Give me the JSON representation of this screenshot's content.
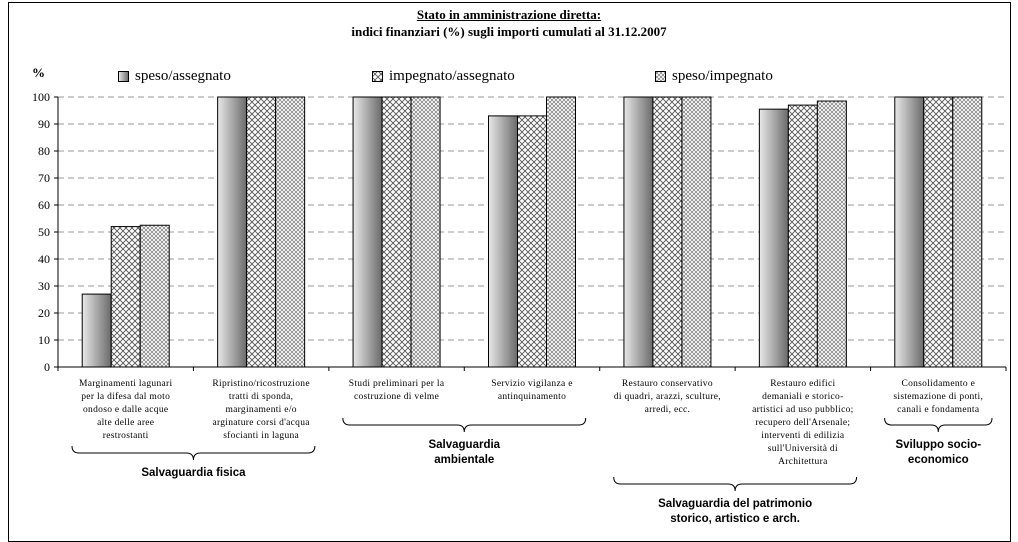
{
  "title": "Stato in amministrazione diretta:",
  "subtitle": "indici finanziari (%) sugli importi cumulati al 31.12.2007",
  "chart_data": {
    "type": "bar",
    "title": "Stato in amministrazione diretta:",
    "subtitle": "indici finanziari (%) sugli importi cumulati al 31.12.2007",
    "ylabel": "%",
    "xlabel": "",
    "ylim": [
      0,
      100
    ],
    "yticks": [
      "0",
      "10",
      "20",
      "30",
      "40",
      "50",
      "60",
      "70",
      "80",
      "90",
      "100"
    ],
    "grid": true,
    "legend_position": "top",
    "categories": [
      "Marginamenti lagunari per la difesa dal moto ondoso e dalle acque alte delle aree restrostanti",
      "Ripristino/ricostruzione tratti di sponda, marginamenti e/o arginature corsi d'acqua sfocianti in laguna",
      "Studi preliminari per la costruzione di velme",
      "Servizio vigilanza e antinquinamento",
      "Restauro conservativo di quadri, arazzi, sculture, arredi, ecc.",
      "Restauro edifici demaniali e storico-artistici ad uso pubblico; recupero dell'Arsenale; interventi di edilizia sull'Università di Architettura",
      "Consolidamento e sistemazione di ponti, canali e fondamenta"
    ],
    "category_label_lines": [
      [
        "Marginamenti lagunari",
        "per la difesa dal moto",
        "ondoso e dalle acque",
        "alte delle aree",
        "restrostanti"
      ],
      [
        "Ripristino/ricostruzione",
        "tratti di sponda,",
        "marginamenti e/o",
        "arginature corsi d'acqua",
        "sfocianti in laguna"
      ],
      [
        "Studi preliminari per la",
        "costruzione di velme"
      ],
      [
        "Servizio vigilanza e",
        "antinquinamento"
      ],
      [
        "Restauro conservativo",
        "di quadri, arazzi, sculture,",
        "arredi, ecc."
      ],
      [
        "Restauro edifici",
        "demaniali e storico-",
        "artistici ad uso pubblico;",
        "recupero dell'Arsenale;",
        "interventi di edilizia",
        "sull'Università di",
        "Architettura"
      ],
      [
        "Consolidamento e",
        "sistemazione di ponti,",
        "canali e fondamenta"
      ]
    ],
    "series": [
      {
        "name": "speso/assegnato",
        "values": [
          27,
          100,
          100,
          93,
          100,
          95.5,
          100
        ]
      },
      {
        "name": "impegnato/assegnato",
        "values": [
          52,
          100,
          100,
          93,
          100,
          97,
          100
        ]
      },
      {
        "name": "speso/impegnato",
        "values": [
          52.5,
          100,
          100,
          100,
          100,
          98.5,
          100
        ]
      }
    ],
    "groups": [
      {
        "label_lines": [
          "Salvaguardia fisica"
        ],
        "categories": [
          0,
          1
        ]
      },
      {
        "label_lines": [
          "Salvaguardia",
          "ambientale"
        ],
        "categories": [
          2,
          3
        ]
      },
      {
        "label_lines": [
          "Salvaguardia del patrimonio",
          "storico, artistico e arch."
        ],
        "categories": [
          4,
          5
        ]
      },
      {
        "label_lines": [
          "Sviluppo socio-",
          "economico"
        ],
        "categories": [
          6
        ]
      }
    ],
    "colors": {
      "series1_light": "#e4e4e4",
      "series1_dark": "#6e6e6e",
      "pattern_fg": "#555555",
      "pattern_bg": "#ffffff",
      "grid": "#999999",
      "axis": "#000000"
    }
  }
}
